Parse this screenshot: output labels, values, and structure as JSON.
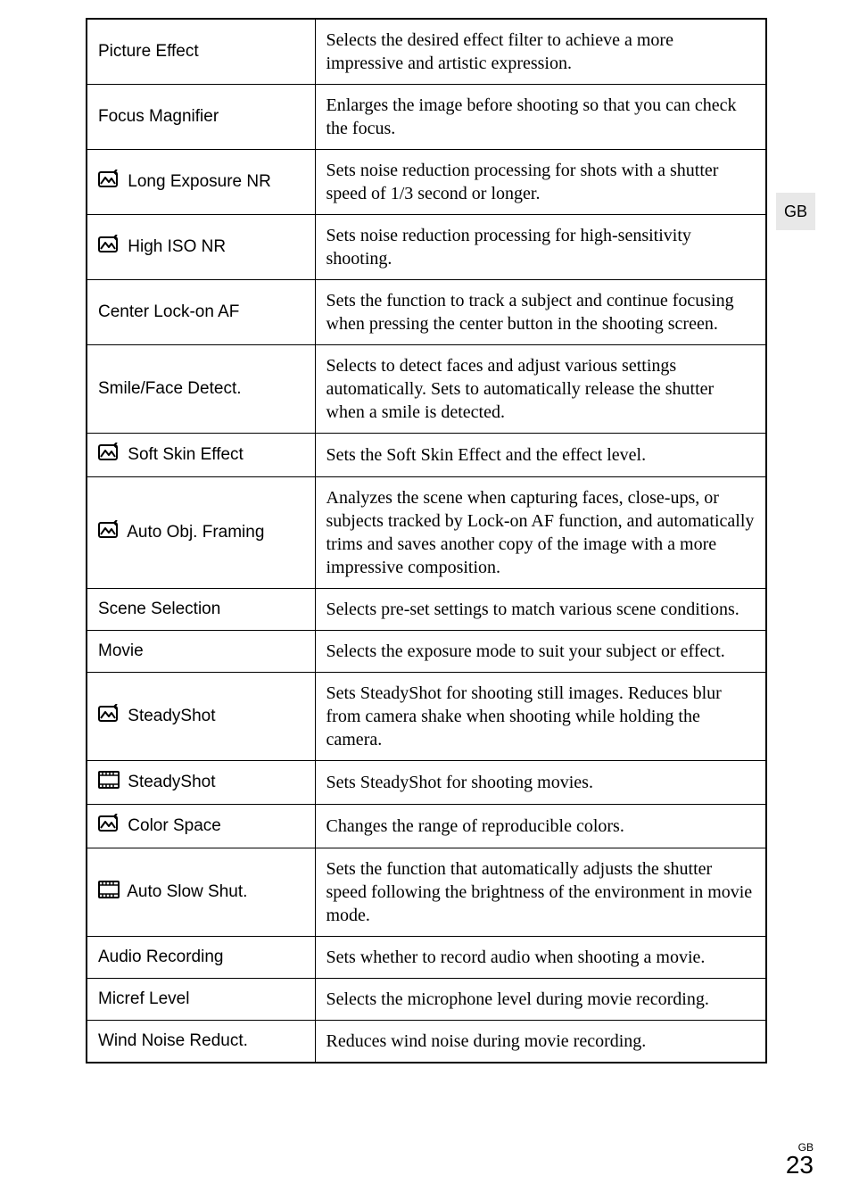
{
  "rows": [
    {
      "label": "Picture Effect",
      "icon": null,
      "desc": "Selects the desired effect filter to achieve a more impressive and artistic expression."
    },
    {
      "label": "Focus Magnifier",
      "icon": null,
      "desc": "Enlarges the image before shooting so that you can check the focus."
    },
    {
      "label": "Long Exposure NR",
      "icon": "still",
      "desc": "Sets noise reduction processing for shots with a shutter speed of 1/3 second or longer."
    },
    {
      "label": "High ISO NR",
      "icon": "still",
      "desc": "Sets noise reduction processing for high-sensitivity shooting."
    },
    {
      "label": "Center Lock-on AF",
      "icon": null,
      "desc": "Sets the function to track a subject and continue focusing when pressing the center button in the shooting screen."
    },
    {
      "label": "Smile/Face Detect.",
      "icon": null,
      "desc": "Selects to detect faces and adjust various settings automatically. Sets to automatically release the shutter when a smile is detected."
    },
    {
      "label": "Soft Skin Effect",
      "icon": "still",
      "desc": "Sets the Soft Skin Effect and the effect level."
    },
    {
      "label": "Auto Obj. Framing",
      "icon": "still",
      "desc": "Analyzes the scene when capturing faces, close-ups, or subjects tracked by Lock-on AF function, and automatically trims and saves another copy of the image with a more impressive composition."
    },
    {
      "label": "Scene Selection",
      "icon": null,
      "desc": "Selects pre-set settings to match various scene conditions."
    },
    {
      "label": "Movie",
      "icon": null,
      "desc": "Selects the exposure mode to suit your subject or effect."
    },
    {
      "label": "SteadyShot",
      "icon": "still",
      "desc": "Sets SteadyShot for shooting still images. Reduces blur from camera shake when shooting while holding the camera."
    },
    {
      "label": "SteadyShot",
      "icon": "movie",
      "desc": "Sets SteadyShot for shooting movies."
    },
    {
      "label": "Color Space",
      "icon": "still",
      "desc": "Changes the range of reproducible colors."
    },
    {
      "label": "Auto Slow Shut.",
      "icon": "movie",
      "desc": "Sets the function that automatically adjusts the shutter speed following the brightness of the environment in movie mode."
    },
    {
      "label": "Audio Recording",
      "icon": null,
      "desc": "Sets whether to record audio when shooting a movie."
    },
    {
      "label": "Micref Level",
      "icon": null,
      "desc": "Selects the microphone level during movie recording."
    },
    {
      "label": "Wind Noise Reduct.",
      "icon": null,
      "desc": "Reduces wind noise during movie recording."
    }
  ],
  "sideTab": "GB",
  "pageGB": "GB",
  "pageNum": "23",
  "colors": {
    "background": "#ffffff",
    "text": "#000000",
    "border": "#000000",
    "sideTabBg": "#e8e8e8"
  }
}
